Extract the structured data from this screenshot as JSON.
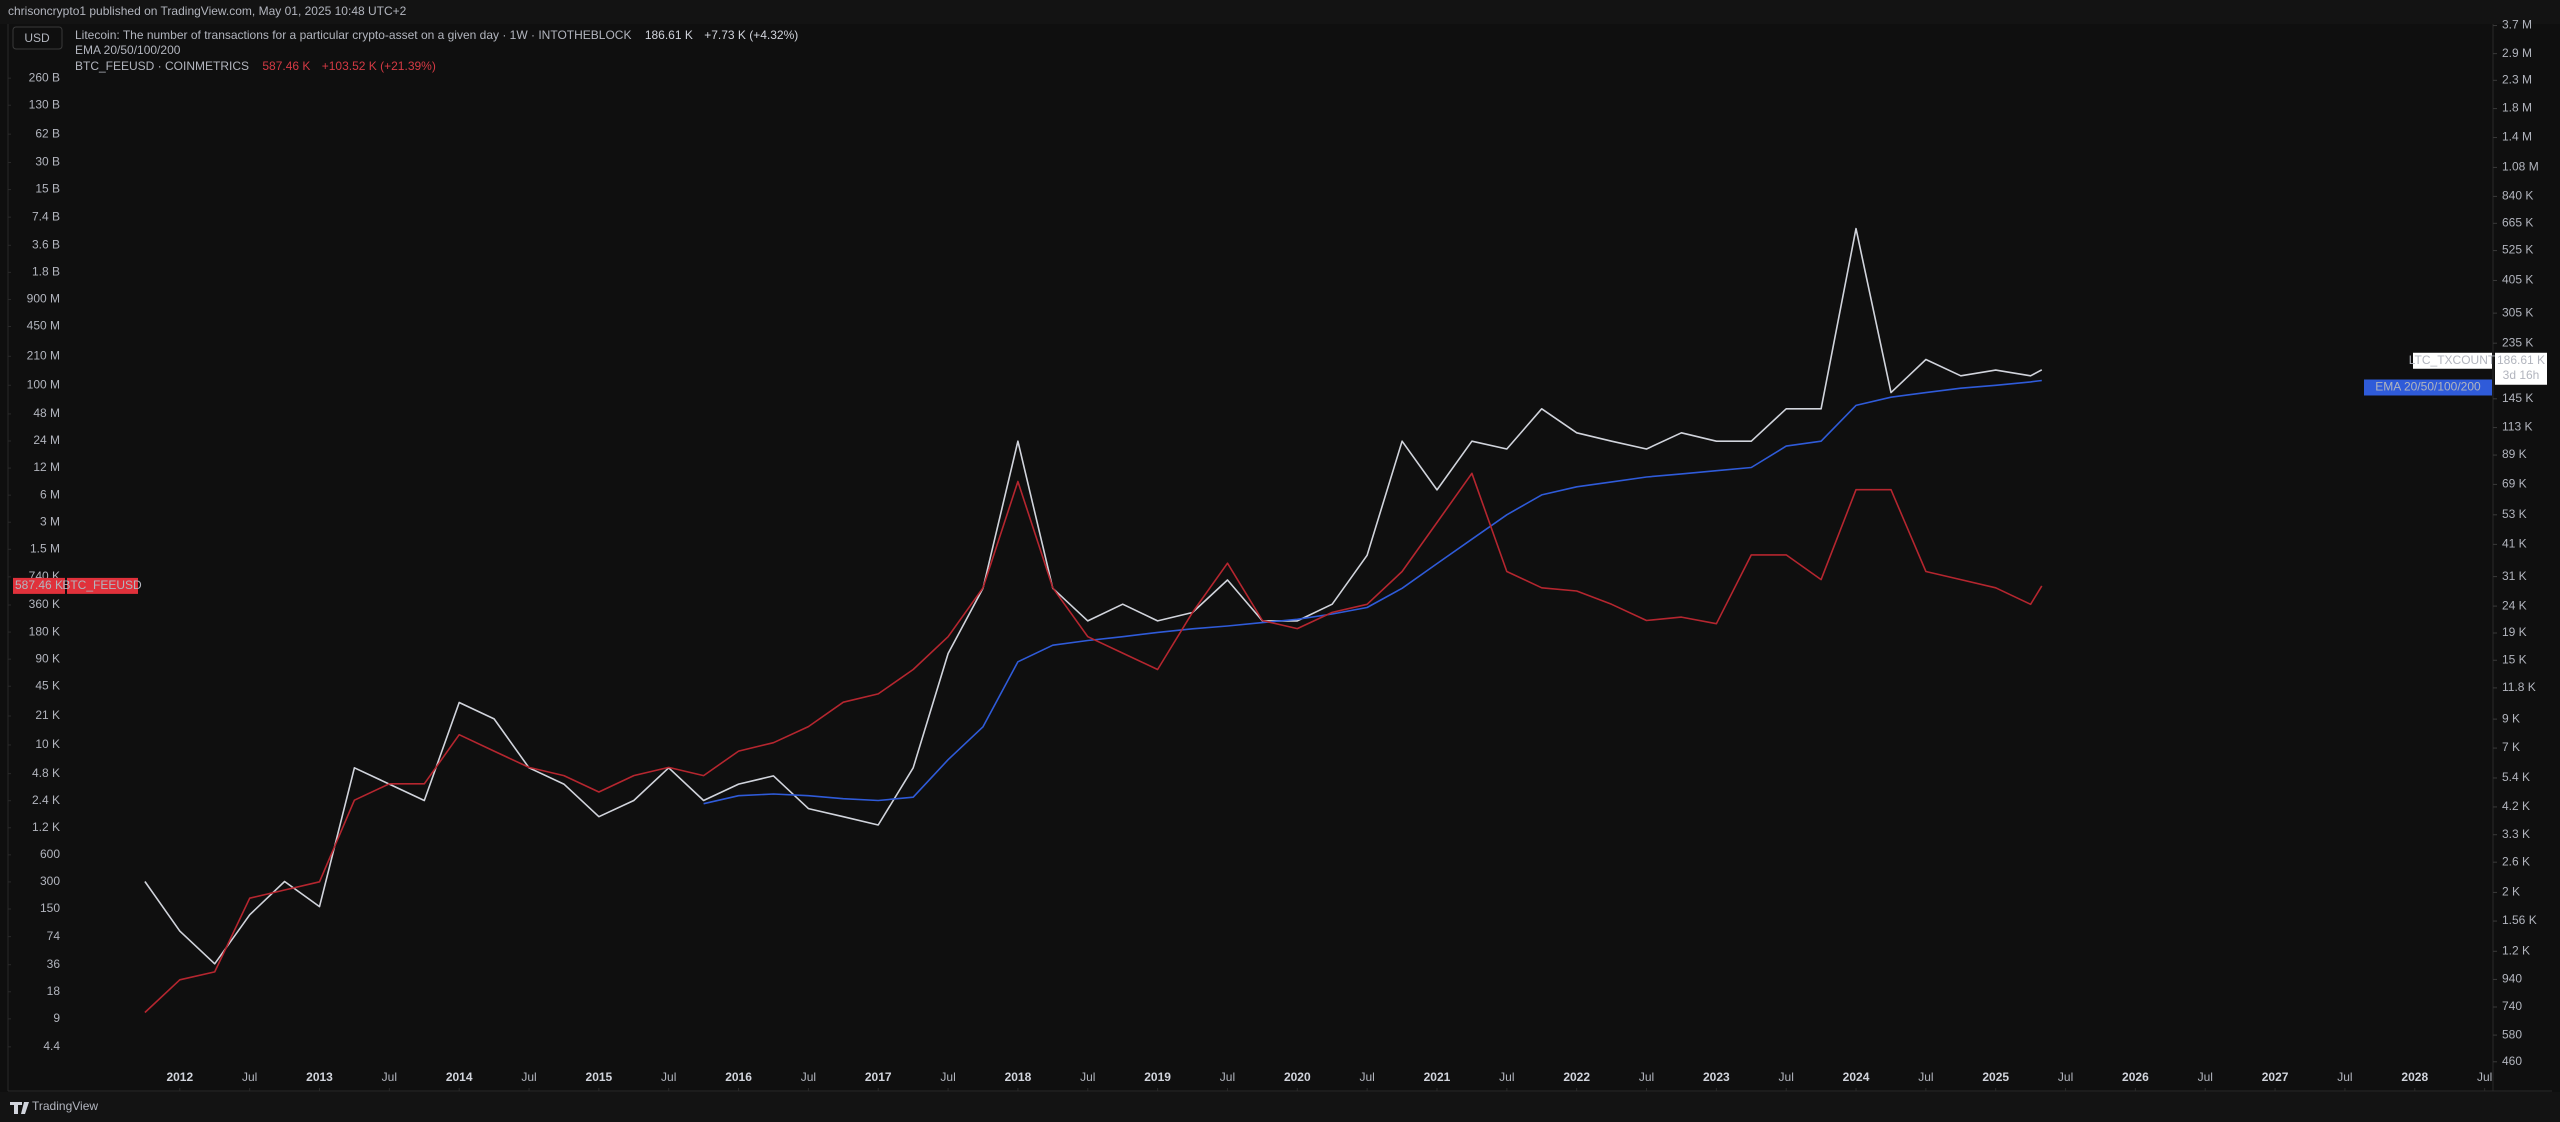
{
  "header": {
    "text": "chrisoncrypto1 published on TradingView.com, May 01, 2025 10:48 UTC+2",
    "currency": "USD",
    "footer": "TradingView"
  },
  "chart_data": {
    "type": "line",
    "log_scale": true,
    "grid": false,
    "x": [
      2011.75,
      2012,
      2012.25,
      2012.5,
      2012.75,
      2013,
      2013.25,
      2013.5,
      2013.75,
      2014,
      2014.25,
      2014.5,
      2014.75,
      2015,
      2015.25,
      2015.5,
      2015.75,
      2016,
      2016.25,
      2016.5,
      2016.75,
      2017,
      2017.25,
      2017.5,
      2017.75,
      2018,
      2018.25,
      2018.5,
      2018.75,
      2019,
      2019.25,
      2019.5,
      2019.75,
      2020,
      2020.25,
      2020.5,
      2020.75,
      2021,
      2021.25,
      2021.5,
      2021.75,
      2022,
      2022.25,
      2022.5,
      2022.75,
      2023,
      2023.25,
      2023.5,
      2023.75,
      2024,
      2024.25,
      2024.5,
      2024.75,
      2025,
      2025.25,
      2025.33
    ],
    "xlim": [
      2010.77,
      2028.56
    ],
    "xticks": [
      2012,
      {
        "value": 2012.5,
        "label": "Jul"
      },
      2013,
      {
        "value": 2013.5,
        "label": "Jul"
      },
      2014,
      {
        "value": 2014.5,
        "label": "Jul"
      },
      2015,
      {
        "value": 2015.5,
        "label": "Jul"
      },
      2016,
      {
        "value": 2016.5,
        "label": "Jul"
      },
      2017,
      {
        "value": 2017.5,
        "label": "Jul"
      },
      2018,
      {
        "value": 2018.5,
        "label": "Jul"
      },
      2019,
      {
        "value": 2019.5,
        "label": "Jul"
      },
      2020,
      {
        "value": 2020.5,
        "label": "Jul"
      },
      2021,
      {
        "value": 2021.5,
        "label": "Jul"
      },
      2022,
      {
        "value": 2022.5,
        "label": "Jul"
      },
      2023,
      {
        "value": 2023.5,
        "label": "Jul"
      },
      2024,
      {
        "value": 2024.5,
        "label": "Jul"
      },
      2025,
      {
        "value": 2025.5,
        "label": "Jul"
      },
      2026,
      {
        "value": 2026.5,
        "label": "Jul"
      },
      2027,
      {
        "value": 2027.5,
        "label": "Jul"
      },
      2028,
      {
        "value": 2028.5,
        "label": "Jul"
      }
    ],
    "ylim": [
      1.42,
      1040000000000
    ],
    "yticks": [
      4.4,
      9,
      18,
      36,
      74,
      150,
      300,
      600,
      {
        "value": 1200,
        "label": "1.2 K"
      },
      {
        "value": 2400,
        "label": "2.4 K"
      },
      {
        "value": 4800,
        "label": "4.8 K"
      },
      {
        "value": 10000,
        "label": "10 K"
      },
      {
        "value": 21000,
        "label": "21 K"
      },
      {
        "value": 45000,
        "label": "45 K"
      },
      {
        "value": 90000,
        "label": "90 K"
      },
      {
        "value": 180000,
        "label": "180 K"
      },
      {
        "value": 360000,
        "label": "360 K"
      },
      {
        "value": 740000,
        "label": "740 K"
      },
      {
        "value": 1500000,
        "label": "1.5 M"
      },
      {
        "value": 3000000,
        "label": "3 M"
      },
      {
        "value": 6000000,
        "label": "6 M"
      },
      {
        "value": 12000000,
        "label": "12 M"
      },
      {
        "value": 24000000,
        "label": "24 M"
      },
      {
        "value": 48000000,
        "label": "48 M"
      },
      {
        "value": 100000000,
        "label": "100 M"
      },
      {
        "value": 210000000,
        "label": "210 M"
      },
      {
        "value": 450000000,
        "label": "450 M"
      },
      {
        "value": 900000000,
        "label": "900 M"
      },
      {
        "value": 1800000000,
        "label": "1.8 B"
      },
      {
        "value": 3600000000,
        "label": "3.6 B"
      },
      {
        "value": 7400000000,
        "label": "7.4 B"
      },
      {
        "value": 15000000000,
        "label": "15 B"
      },
      {
        "value": 30000000000,
        "label": "30 B"
      },
      {
        "value": 62000000000,
        "label": "62 B"
      },
      {
        "value": 130000000000,
        "label": "130 B"
      },
      {
        "value": 260000000000,
        "label": "260 B"
      }
    ],
    "y2lim": [
      357,
      3750000
    ],
    "y2ticks": [
      460,
      580,
      740,
      940,
      {
        "value": 1200,
        "label": "1.2 K"
      },
      {
        "value": 1560,
        "label": "1.56 K"
      },
      {
        "value": 2000,
        "label": "2 K"
      },
      {
        "value": 2600,
        "label": "2.6 K"
      },
      {
        "value": 3300,
        "label": "3.3 K"
      },
      {
        "value": 4200,
        "label": "4.2 K"
      },
      {
        "value": 5400,
        "label": "5.4 K"
      },
      {
        "value": 7000,
        "label": "7 K"
      },
      {
        "value": 9000,
        "label": "9 K"
      },
      {
        "value": 11800,
        "label": "11.8 K"
      },
      {
        "value": 15000,
        "label": "15 K"
      },
      {
        "value": 19000,
        "label": "19 K"
      },
      {
        "value": 24000,
        "label": "24 K"
      },
      {
        "value": 31000,
        "label": "31 K"
      },
      {
        "value": 41000,
        "label": "41 K"
      },
      {
        "value": 53000,
        "label": "53 K"
      },
      {
        "value": 69000,
        "label": "69 K"
      },
      {
        "value": 89000,
        "label": "89 K"
      },
      {
        "value": 113000,
        "label": "113 K"
      },
      {
        "value": 145000,
        "label": "145 K"
      },
      {
        "value": 235000,
        "label": "235 K"
      },
      {
        "value": 305000,
        "label": "305 K"
      },
      {
        "value": 405000,
        "label": "405 K"
      },
      {
        "value": 525000,
        "label": "525 K"
      },
      {
        "value": 665000,
        "label": "665 K"
      },
      {
        "value": 840000,
        "label": "840 K"
      },
      {
        "value": 1080000,
        "label": "1.08 M"
      },
      {
        "value": 1400000,
        "label": "1.4 M"
      },
      {
        "value": 1800000,
        "label": "1.8 M"
      },
      {
        "value": 2300000,
        "label": "2.3 M"
      },
      {
        "value": 2900000,
        "label": "2.9 M"
      },
      {
        "value": 3700000,
        "label": "3.7 M"
      }
    ],
    "series": [
      {
        "name": "LTC_TXCOUNT",
        "description": "Litecoin: The number of transactions for a particular crypto-asset on a given day · 1W · INTOTHEBLOCK",
        "last_label": "186.61 K",
        "change": "+7.73 K (+4.32%)",
        "countdown": "3d 16h",
        "color": "#d1d4dc",
        "axis": "y2",
        "values": [
          2200,
          1430,
          1077,
          1647,
          2200,
          1768,
          5900,
          5120,
          4440,
          10400,
          9020,
          5900,
          5120,
          3860,
          4440,
          5900,
          4440,
          5120,
          5500,
          4140,
          3860,
          3590,
          5900,
          15900,
          28000,
          100400,
          28000,
          21100,
          24400,
          21100,
          22700,
          30100,
          21100,
          21100,
          24400,
          37300,
          100400,
          65800,
          100400,
          93800,
          133000,
          108000,
          100400,
          93800,
          108000,
          100400,
          100400,
          133000,
          133000,
          635000,
          153000,
          204000,
          177000,
          186000,
          177000,
          186610
        ]
      },
      {
        "name": "EMA 20/50/100/200",
        "color": "#2f5bd9",
        "axis": "y2",
        "values": [
          null,
          null,
          null,
          null,
          null,
          null,
          null,
          null,
          null,
          null,
          null,
          null,
          null,
          null,
          null,
          null,
          4320,
          4630,
          4700,
          4630,
          4510,
          4440,
          4570,
          6330,
          8420,
          14800,
          17100,
          17800,
          18400,
          19100,
          19700,
          20200,
          20800,
          21400,
          22400,
          23700,
          28000,
          34700,
          42900,
          53000,
          63000,
          67600,
          70500,
          73600,
          75600,
          77700,
          79900,
          96200,
          100400,
          137000,
          147000,
          153000,
          159000,
          163000,
          168000,
          170000
        ]
      },
      {
        "name": "BTC_FEEUSD",
        "description": "BTC_FEEUSD · COINMETRICS",
        "last_label": "587.46 K",
        "change": "+103.52 K (+21.39%)",
        "color": "#b5262f",
        "axis": "y",
        "values": [
          10.6,
          24.5,
          30,
          198,
          244,
          301,
          2430,
          3700,
          3700,
          13000,
          8540,
          5630,
          4570,
          3000,
          4570,
          5630,
          4570,
          8540,
          10600,
          16000,
          29900,
          37000,
          69000,
          160000,
          560000,
          8500000,
          560000,
          160000,
          105000,
          69000,
          298000,
          1050000,
          242000,
          197000,
          298000,
          367000,
          850000,
          2980000,
          10500000,
          850000,
          560000,
          516000,
          367000,
          242000,
          264000,
          223000,
          1300000,
          1300000,
          690000,
          6900000,
          6900000,
          850000,
          690000,
          560000,
          367000,
          587460
        ]
      }
    ]
  }
}
